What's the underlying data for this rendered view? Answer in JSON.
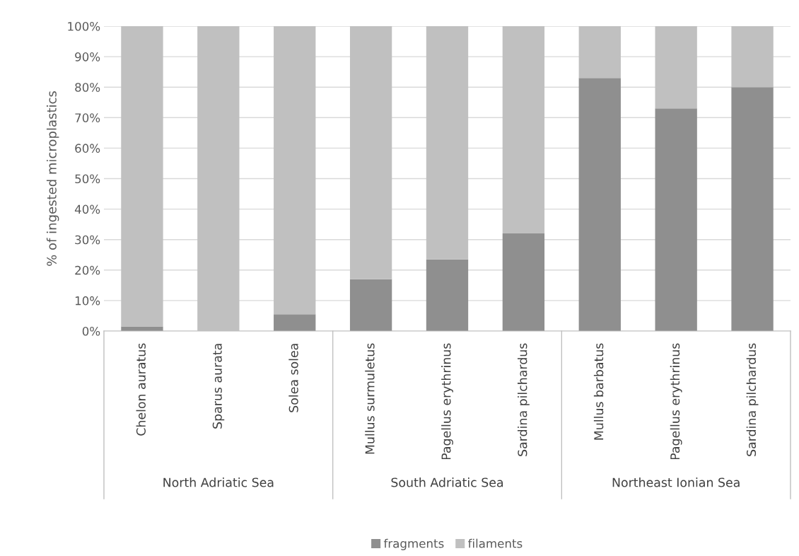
{
  "chart_data": {
    "type": "bar",
    "stacked": true,
    "ylabel": "% of ingested microplastics",
    "categories": [
      "Chelon auratus",
      "Sparus aurata",
      "Solea solea",
      "Mullus surmuletus",
      "Pagellus erythrinus",
      "Sardina pilchardus",
      "Mullus barbatus",
      "Pagellus erythrinus",
      "Sardina pilchardus"
    ],
    "series": [
      {
        "name": "fragments",
        "color": "#8f8f8f",
        "values": [
          1.5,
          0,
          5.5,
          17,
          23.5,
          32,
          83,
          73,
          80
        ]
      },
      {
        "name": "filaments",
        "color": "#c0c0c0",
        "values": [
          98.5,
          100,
          94.5,
          83,
          76.5,
          68,
          17,
          27,
          20
        ]
      }
    ],
    "annotations": [
      "North Adriatic Sea",
      "South Adriatic Sea",
      "Northeast Ionian Sea"
    ],
    "ylim": [
      0,
      100
    ],
    "yticks": [
      {
        "value": 0,
        "label": "0%"
      },
      {
        "value": 10,
        "label": "10%"
      },
      {
        "value": 20,
        "label": "20%"
      },
      {
        "value": 30,
        "label": "30%"
      },
      {
        "value": 40,
        "label": "40%"
      },
      {
        "value": 50,
        "label": "50%"
      },
      {
        "value": 60,
        "label": "60%"
      },
      {
        "value": 70,
        "label": "70%"
      },
      {
        "value": 80,
        "label": "80%"
      },
      {
        "value": 90,
        "label": "90%"
      },
      {
        "value": 100,
        "label": "100%"
      }
    ],
    "grid": "y",
    "legend": "bottom"
  }
}
